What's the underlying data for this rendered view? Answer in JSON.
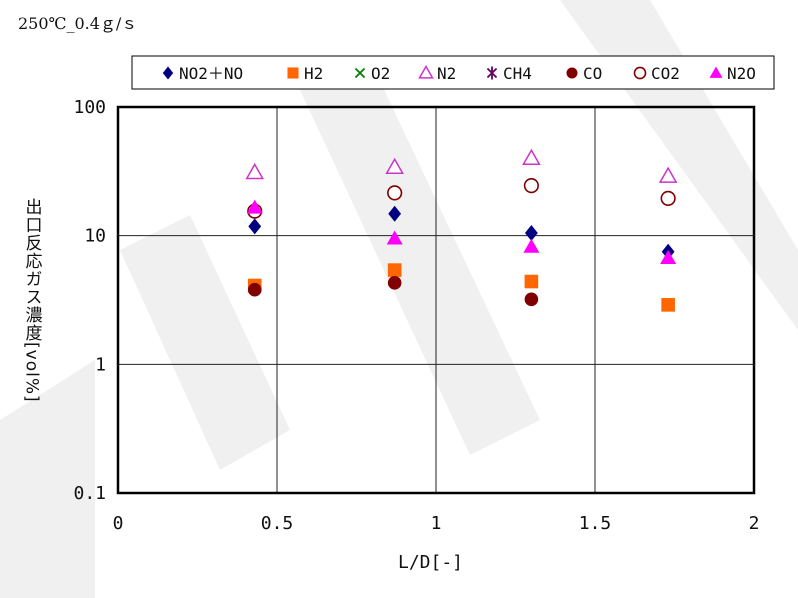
{
  "chart_data": {
    "type": "scatter",
    "title": "250℃_0.4ｇ/ｓ",
    "xlabel": "L/D[-]",
    "ylabel": "出口反応ガス濃度[vol%]",
    "xlim": [
      0,
      2
    ],
    "ylim": [
      0.1,
      100
    ],
    "yscale": "log",
    "xticks": [
      0,
      0.5,
      1,
      1.5,
      2
    ],
    "xtick_labels": [
      "0",
      "0.5",
      "1",
      "1.5",
      "2"
    ],
    "yticks": [
      0.1,
      1,
      10,
      100
    ],
    "ytick_labels": [
      "0.1",
      "1",
      "10",
      "100"
    ],
    "grid": true,
    "legend_position": "top",
    "series": [
      {
        "name": "NO2＋NO",
        "marker": "diamond",
        "fill": true,
        "color": "#000080",
        "x": [
          0.43,
          0.87,
          1.3,
          1.73
        ],
        "y": [
          11.8,
          14.8,
          10.5,
          7.5
        ]
      },
      {
        "name": "H2",
        "marker": "square",
        "fill": true,
        "color": "#ff6600",
        "x": [
          0.43,
          0.87,
          1.3,
          1.73
        ],
        "y": [
          4.1,
          5.4,
          4.4,
          2.9
        ]
      },
      {
        "name": "O2",
        "marker": "x",
        "fill": false,
        "color": "#008000",
        "x": [],
        "y": []
      },
      {
        "name": "N2",
        "marker": "triangle",
        "fill": false,
        "color": "#cc33cc",
        "x": [
          0.43,
          0.87,
          1.3,
          1.73
        ],
        "y": [
          31,
          34,
          40,
          29
        ]
      },
      {
        "name": "CH4",
        "marker": "star",
        "fill": false,
        "color": "#660066",
        "x": [],
        "y": []
      },
      {
        "name": "CO",
        "marker": "circle",
        "fill": true,
        "color": "#800000",
        "x": [
          0.43,
          0.87,
          1.3
        ],
        "y": [
          3.8,
          4.3,
          3.2
        ]
      },
      {
        "name": "CO2",
        "marker": "circle",
        "fill": false,
        "color": "#800000",
        "x": [
          0.43,
          0.87,
          1.3,
          1.73
        ],
        "y": [
          15.5,
          21.5,
          24.5,
          19.5
        ]
      },
      {
        "name": "N2O",
        "marker": "triangle",
        "fill": true,
        "color": "#ff00ff",
        "x": [
          0.43,
          0.87,
          1.3,
          1.73
        ],
        "y": [
          16.5,
          9.5,
          8.2,
          6.7
        ]
      }
    ]
  }
}
